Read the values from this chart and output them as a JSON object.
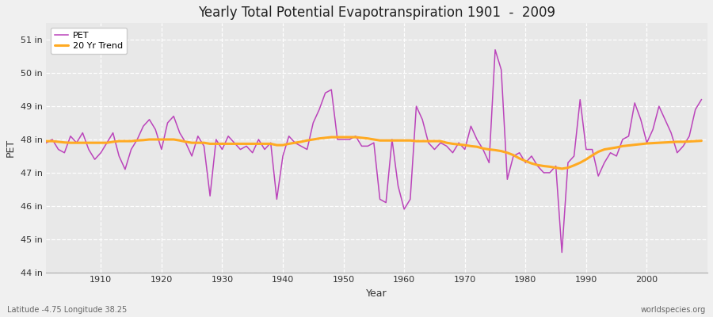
{
  "title": "Yearly Total Potential Evapotranspiration 1901  -  2009",
  "ylabel": "PET",
  "xlabel": "Year",
  "start_year": 1901,
  "end_year": 2009,
  "pet_color": "#bb44bb",
  "trend_color": "#ffaa22",
  "background_color": "#f0f0f0",
  "plot_bg_color": "#e8e8e8",
  "grid_color": "#ffffff",
  "ylim": [
    44,
    51.5
  ],
  "ytick_labels": [
    "44 in",
    "45 in",
    "46 in",
    "47 in",
    "48 in",
    "49 in",
    "50 in",
    "51 in"
  ],
  "ytick_values": [
    44,
    45,
    46,
    47,
    48,
    49,
    50,
    51
  ],
  "subtitle_left": "Latitude -4.75 Longitude 38.25",
  "subtitle_right": "worldspecies.org",
  "pet_values": [
    47.9,
    48.0,
    47.7,
    47.6,
    48.1,
    47.9,
    48.2,
    47.7,
    47.4,
    47.6,
    47.9,
    48.2,
    47.5,
    47.1,
    47.7,
    48.0,
    48.4,
    48.6,
    48.3,
    47.7,
    48.5,
    48.7,
    48.2,
    47.9,
    47.5,
    48.1,
    47.8,
    46.3,
    48.0,
    47.7,
    48.1,
    47.9,
    47.7,
    47.8,
    47.6,
    48.0,
    47.7,
    47.9,
    46.2,
    47.5,
    48.1,
    47.9,
    47.8,
    47.7,
    48.5,
    48.9,
    49.4,
    49.5,
    48.0,
    48.0,
    48.0,
    48.1,
    47.8,
    47.8,
    47.9,
    46.2,
    46.1,
    48.0,
    46.6,
    45.9,
    46.2,
    49.0,
    48.6,
    47.9,
    47.7,
    47.9,
    47.8,
    47.6,
    47.9,
    47.7,
    48.4,
    48.0,
    47.7,
    47.3,
    50.7,
    50.1,
    46.8,
    47.5,
    47.6,
    47.3,
    47.5,
    47.2,
    47.0,
    47.0,
    47.2,
    44.6,
    47.3,
    47.5,
    49.2,
    47.7,
    47.7,
    46.9,
    47.3,
    47.6,
    47.5,
    48.0,
    48.1,
    49.1,
    48.6,
    47.9,
    48.3,
    49.0,
    48.6,
    48.2,
    47.6,
    47.8,
    48.1,
    48.9,
    49.2
  ],
  "trend_values": [
    47.95,
    47.95,
    47.93,
    47.91,
    47.9,
    47.9,
    47.9,
    47.9,
    47.9,
    47.9,
    47.9,
    47.93,
    47.95,
    47.95,
    47.95,
    47.97,
    47.98,
    48.0,
    48.0,
    48.0,
    48.0,
    48.0,
    47.97,
    47.93,
    47.9,
    47.9,
    47.9,
    47.87,
    47.87,
    47.87,
    47.87,
    47.87,
    47.87,
    47.87,
    47.87,
    47.87,
    47.87,
    47.87,
    47.83,
    47.83,
    47.87,
    47.9,
    47.93,
    47.97,
    48.0,
    48.03,
    48.05,
    48.07,
    48.07,
    48.07,
    48.07,
    48.07,
    48.05,
    48.03,
    48.0,
    47.97,
    47.97,
    47.97,
    47.97,
    47.97,
    47.97,
    47.95,
    47.95,
    47.95,
    47.95,
    47.95,
    47.9,
    47.87,
    47.85,
    47.83,
    47.8,
    47.78,
    47.73,
    47.7,
    47.68,
    47.65,
    47.6,
    47.53,
    47.43,
    47.35,
    47.28,
    47.23,
    47.2,
    47.18,
    47.15,
    47.12,
    47.15,
    47.22,
    47.3,
    47.4,
    47.52,
    47.63,
    47.7,
    47.73,
    47.76,
    47.8,
    47.82,
    47.84,
    47.86,
    47.88,
    47.89,
    47.9,
    47.91,
    47.92,
    47.93,
    47.93,
    47.94,
    47.95,
    47.96
  ]
}
